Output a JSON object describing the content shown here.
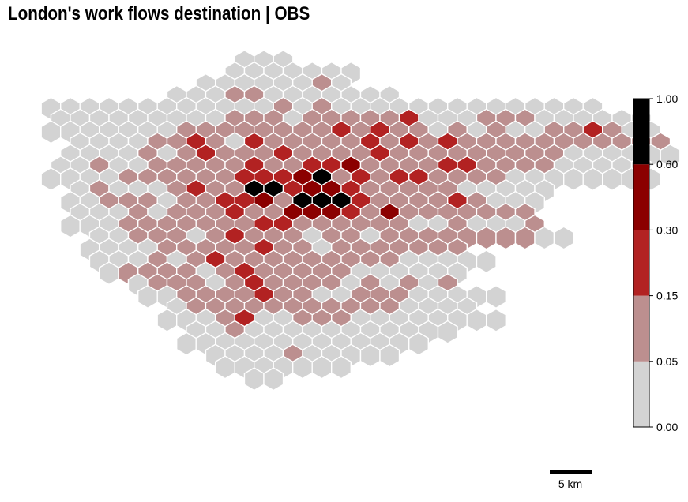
{
  "title": "London's work flows destination | OBS",
  "legend": {
    "ticks": [
      "0.00",
      "0.05",
      "0.15",
      "0.30",
      "0.60",
      "1.00"
    ],
    "classes": [
      {
        "from": 0.0,
        "to": 0.05,
        "color": "#d3d3d3"
      },
      {
        "from": 0.05,
        "to": 0.15,
        "color": "#bc8f8f"
      },
      {
        "from": 0.15,
        "to": 0.3,
        "color": "#b22222"
      },
      {
        "from": 0.3,
        "to": 0.6,
        "color": "#8b0000"
      },
      {
        "from": 0.6,
        "to": 1.0,
        "color": "#000000"
      }
    ]
  },
  "scale_bar": {
    "label": "5 km"
  },
  "map_data": {
    "type": "hexbin-choropleth",
    "grid_origin_row": 0,
    "grid_origin_col": 0,
    "class_codes": "0=0.00-0.05, 1=0.05-0.15, 2=0.15-0.30, 3=0.30-0.60, 4=0.60-1.00",
    "rows": [
      {
        "r": 0,
        "c0": 11,
        "v": "000"
      },
      {
        "r": 1,
        "c0": 10,
        "v": "0000000"
      },
      {
        "r": 2,
        "c0": 9,
        "v": "00000010"
      },
      {
        "r": 3,
        "c0": 7,
        "v": "000110000000"
      },
      {
        "r": 4,
        "c0": 1,
        "v": "00000000000010100000000000000"
      },
      {
        "r": 5,
        "c0": 1,
        "v": "0000000001110111112000111000000"
      },
      {
        "r": 6,
        "c0": 1,
        "v": "00000001111111111211010100112100"
      },
      {
        "r": 7,
        "c0": 2,
        "v": "0000112102111111121211111111111"
      },
      {
        "r": 8,
        "c0": 2,
        "v": "00001012111211111111111111000000"
      },
      {
        "r": 9,
        "c0": 1,
        "v": "0010011111211123111121111100000"
      },
      {
        "r": 10,
        "c0": 1,
        "v": "00001111112223412111111100000000"
      },
      {
        "r": 11,
        "c0": 2,
        "v": "0100012114421211111100000"
      },
      {
        "r": 12,
        "c0": 2,
        "v": "0011101122312132111121000"
      },
      {
        "r": 13,
        "c0": 2,
        "v": "000101112113211121111111"
      },
      {
        "r": 14,
        "c0": 2,
        "v": "0001111111221111110010001"
      },
      {
        "r": 15,
        "c0": 3,
        "v": "0011101211101101111111100"
      },
      {
        "r": 16,
        "c0": 3,
        "v": "00001111121101111111"
      },
      {
        "r": 17,
        "c0": 3,
        "v": "000101211111111100000"
      },
      {
        "r": 18,
        "c0": 4,
        "v": "0111101211111000000"
      },
      {
        "r": 19,
        "c0": 5,
        "v": "01110121111010101"
      },
      {
        "r": 20,
        "c0": 6,
        "v": "0011112110011100000"
      },
      {
        "r": 21,
        "c0": 7,
        "v": "0111111111110000"
      },
      {
        "r": 22,
        "c0": 7,
        "v": "000120011100000000"
      },
      {
        "r": 23,
        "c0": 8,
        "v": "00100000000000"
      },
      {
        "r": 24,
        "c0": 8,
        "v": "0000000000000"
      },
      {
        "r": 25,
        "c0": 9,
        "v": "0000100000"
      },
      {
        "r": 26,
        "c0": 10,
        "v": "0000000"
      },
      {
        "r": 27,
        "c0": 11,
        "v": "00"
      }
    ],
    "highlight_overrides": [
      {
        "r": 6,
        "c": 16,
        "v": 2
      },
      {
        "r": 7,
        "c": 17,
        "v": 2
      },
      {
        "r": 8,
        "c": 18,
        "v": 2
      },
      {
        "r": 9,
        "c": 14,
        "v": 2
      },
      {
        "r": 9,
        "c": 22,
        "v": 2
      },
      {
        "r": 10,
        "c": 13,
        "v": 2
      },
      {
        "r": 10,
        "c": 17,
        "v": 2
      },
      {
        "r": 10,
        "c": 19,
        "v": 2
      },
      {
        "r": 10,
        "c": 20,
        "v": 2
      },
      {
        "r": 11,
        "c": 14,
        "v": 3
      },
      {
        "r": 11,
        "c": 15,
        "v": 3
      },
      {
        "r": 11,
        "c": 16,
        "v": 2
      },
      {
        "r": 12,
        "c": 14,
        "v": 4
      },
      {
        "r": 12,
        "c": 15,
        "v": 4
      },
      {
        "r": 12,
        "c": 16,
        "v": 4
      },
      {
        "r": 13,
        "c": 13,
        "v": 3
      },
      {
        "r": 13,
        "c": 14,
        "v": 3
      },
      {
        "r": 13,
        "c": 15,
        "v": 3
      },
      {
        "r": 13,
        "c": 16,
        "v": 2
      },
      {
        "r": 13,
        "c": 18,
        "v": 3
      }
    ]
  }
}
